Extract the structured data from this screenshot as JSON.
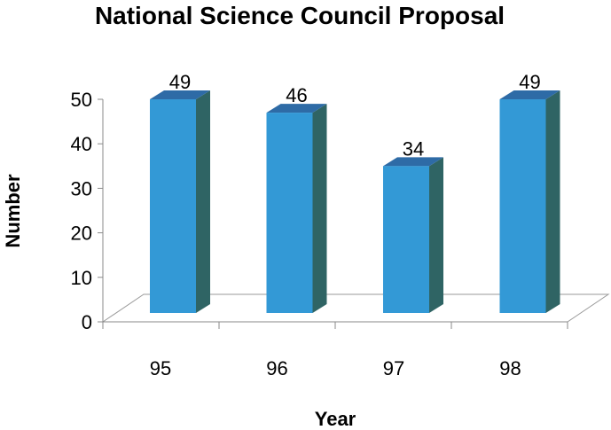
{
  "chart_data": {
    "type": "bar",
    "title": "National Science Council Proposal",
    "xlabel": "Year",
    "ylabel": "Number",
    "categories": [
      "95",
      "96",
      "97",
      "98"
    ],
    "values": [
      49,
      46,
      34,
      49
    ],
    "data_labels": [
      "49",
      "46",
      "34",
      "49"
    ],
    "y_ticks": [
      "0",
      "10",
      "20",
      "30",
      "40",
      "50"
    ],
    "ylim": [
      0,
      50
    ],
    "grid": false,
    "legend": "none",
    "three_d": true,
    "colors": {
      "bar_front": "#3399D6",
      "bar_top": "#2E6BA6",
      "bar_side": "#2F6464",
      "floor_stroke": "#9A9A9A",
      "axis": "#8A8A8A"
    }
  }
}
